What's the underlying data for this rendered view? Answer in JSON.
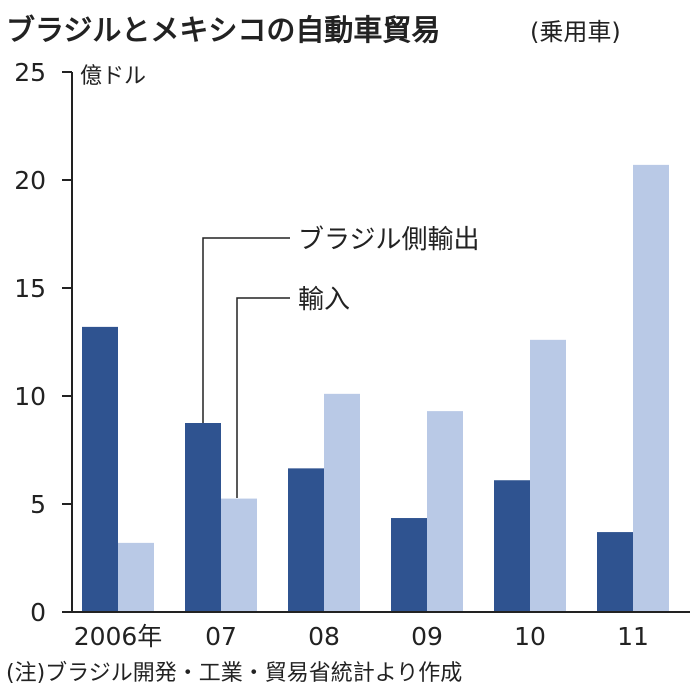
{
  "chart_data": {
    "type": "bar",
    "title": "ブラジルとメキシコの自動車貿易",
    "subtitle": "(乗用車)",
    "ylabel": "億ドル",
    "xlabel": "",
    "categories": [
      "2006年",
      "07",
      "08",
      "09",
      "10",
      "11"
    ],
    "series": [
      {
        "name": "ブラジル側輸出",
        "values": [
          13.2,
          8.75,
          6.65,
          4.35,
          6.1,
          3.7
        ],
        "color": "#2f5390"
      },
      {
        "name": "輸入",
        "values": [
          3.2,
          5.25,
          10.1,
          9.3,
          12.6,
          20.7
        ],
        "color": "#b9c9e6"
      }
    ],
    "ylim": [
      0,
      25
    ],
    "yticks": [
      "0",
      "5",
      "10",
      "15",
      "20",
      "25"
    ],
    "grid": false,
    "legend": "inline annotations",
    "footnote": "(注)ブラジル開発・工業・貿易省統計より作成"
  }
}
